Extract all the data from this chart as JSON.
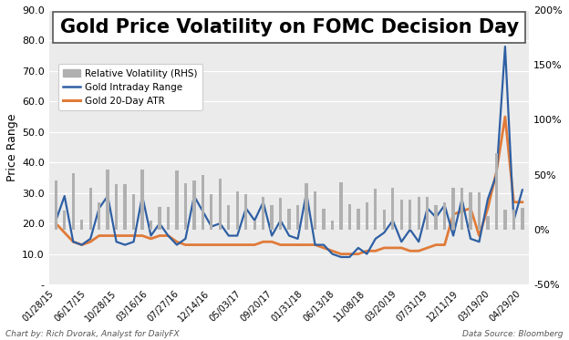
{
  "title": "Gold Price Volatility on FOMC Decision Day",
  "ylabel_left": "Price Range",
  "xlabels": [
    "01/28/15",
    "06/17/15",
    "10/28/15",
    "03/16/16",
    "07/27/16",
    "12/14/16",
    "05/03/17",
    "09/20/17",
    "01/31/18",
    "06/13/18",
    "11/08/18",
    "03/20/19",
    "07/31/19",
    "12/11/19",
    "03/19/20",
    "04/29/20"
  ],
  "ylim_left": [
    0,
    90
  ],
  "ylim_right": [
    -0.5,
    2.0
  ],
  "ytick_labels_left": [
    "-",
    "10.0",
    "20.0",
    "30.0",
    "40.0",
    "50.0",
    "60.0",
    "70.0",
    "80.0",
    "90.0"
  ],
  "yticks_left_vals": [
    0,
    10,
    20,
    30,
    40,
    50,
    60,
    70,
    80,
    90
  ],
  "yticks_right_vals": [
    -0.5,
    0.0,
    0.5,
    1.0,
    1.5,
    2.0
  ],
  "ytick_labels_right": [
    "-50%",
    "0%",
    "50%",
    "100%",
    "150%",
    "200%"
  ],
  "blue_line": [
    21,
    29,
    14,
    13,
    15,
    25,
    29,
    14,
    13,
    14,
    29,
    16,
    20,
    16,
    13,
    15,
    29,
    24,
    19,
    20,
    16,
    16,
    25,
    21,
    27,
    16,
    21,
    16,
    15,
    30,
    13,
    13,
    10,
    9,
    9,
    12,
    10,
    15,
    17,
    21,
    14,
    18,
    14,
    25,
    22,
    26,
    16,
    28,
    15,
    14,
    28,
    36,
    78,
    21,
    31
  ],
  "orange_line": [
    20,
    17,
    14,
    13,
    14,
    16,
    16,
    16,
    16,
    16,
    16,
    15,
    16,
    16,
    14,
    13,
    13,
    13,
    13,
    13,
    13,
    13,
    13,
    13,
    14,
    14,
    13,
    13,
    13,
    13,
    13,
    12,
    11,
    10,
    10,
    10,
    11,
    11,
    12,
    12,
    12,
    11,
    11,
    12,
    13,
    13,
    23,
    24,
    25,
    16,
    25,
    37,
    55,
    27,
    27
  ],
  "bars_rhs": [
    0.45,
    0.17,
    0.51,
    0.09,
    0.38,
    0.25,
    0.55,
    0.41,
    0.41,
    0.32,
    0.55,
    0.08,
    0.21,
    0.21,
    0.54,
    0.42,
    0.45,
    0.5,
    0.32,
    0.46,
    0.22,
    0.35,
    0.32,
    0.08,
    0.3,
    0.22,
    0.29,
    0.19,
    0.22,
    0.42,
    0.35,
    0.19,
    0.08,
    0.43,
    0.23,
    0.19,
    0.25,
    0.37,
    0.18,
    0.38,
    0.27,
    0.27,
    0.3,
    0.3,
    0.22,
    0.25,
    0.38,
    0.38,
    0.34,
    0.34,
    0.12,
    0.7,
    0.18,
    0.18,
    0.2
  ],
  "bg_color": "#ffffff",
  "plot_bg_color": "#ebebeb",
  "blue_color": "#2e5fa3",
  "orange_color": "#e07b39",
  "bar_color": "#b0b0b0",
  "title_fontsize": 15,
  "axis_label_fontsize": 9,
  "tick_fontsize": 8,
  "footer_left": "Chart by: Rich Dvorak, Analyst for DailyFX",
  "footer_right": "Data Source: Bloomberg"
}
